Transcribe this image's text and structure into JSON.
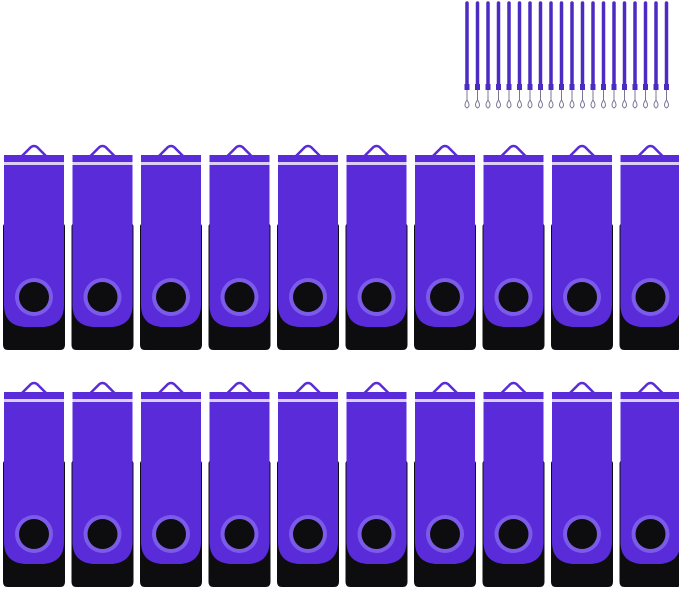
{
  "product": {
    "drive_quantity": 20,
    "lanyard_quantity": 20,
    "colors": {
      "cover": "#5a2bd8",
      "cover_highlight": "#d9cff7",
      "body": "#0d0d0f",
      "lanyard": "#4b2bc4",
      "background": "#ffffff"
    }
  }
}
